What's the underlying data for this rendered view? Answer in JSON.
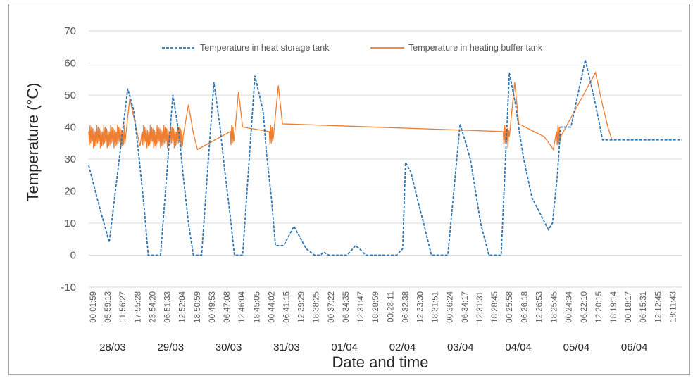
{
  "chart_data": {
    "type": "line",
    "xlabel": "Date and time",
    "ylabel": "Temperature (°C)",
    "ylim": [
      -10,
      70
    ],
    "yticks": [
      -10,
      0,
      10,
      20,
      30,
      40,
      50,
      60,
      70
    ],
    "grid": true,
    "legend_position": "top-center",
    "x_time_labels": [
      "00:01:59",
      "05:59:13",
      "11:56:27",
      "17:55:28",
      "23:54:20",
      "06:51:33",
      "12:52:04",
      "18:50:59",
      "00:49:53",
      "06:47:08",
      "12:46:04",
      "18:45:05",
      "00:44:02",
      "06:41:15",
      "12:39:29",
      "18:38:25",
      "00:37:22",
      "06:34:35",
      "12:31:47",
      "18:28:59",
      "00:28:11",
      "06:32:38",
      "12:33:30",
      "18:31:51",
      "00:36:24",
      "06:34:17",
      "12:31:31",
      "18:28:45",
      "00:25:58",
      "06:26:18",
      "12:26:53",
      "18:25:45",
      "00:24:34",
      "06:22:10",
      "12:20:15",
      "18:19:14",
      "00:18:17",
      "06:15:31",
      "12:12:45",
      "18:11:43"
    ],
    "date_labels": [
      "28/03",
      "29/03",
      "30/03",
      "31/03",
      "01/04",
      "02/04",
      "03/04",
      "04/04",
      "05/04",
      "06/04"
    ],
    "series": [
      {
        "name": "Temperature in heat storage tank",
        "color": "#2e75b6",
        "style": "dashed",
        "x_days": [
          0.0,
          0.2,
          0.5,
          0.95,
          1.1,
          1.23,
          1.35,
          1.45,
          1.75,
          2.05,
          2.2,
          2.3,
          2.43,
          2.55,
          2.75,
          3.05,
          3.2,
          3.3,
          3.45,
          3.55,
          3.75,
          4.05,
          4.25,
          4.33,
          4.45,
          4.55,
          4.75,
          5.0,
          5.3,
          5.5,
          5.65,
          5.72,
          5.85,
          6.3,
          6.5,
          6.6,
          6.75,
          6.85,
          7.5,
          7.65,
          7.72,
          7.85,
          8.0,
          8.2,
          8.35,
          8.45,
          8.55,
          8.75,
          9.05,
          9.3,
          9.4,
          9.55,
          9.75,
          10.05,
          10.25,
          10.4,
          10.5,
          10.6,
          10.8,
          11.2,
          11.3,
          11.42,
          11.5,
          11.75,
          12.1,
          12.3,
          12.43,
          12.52,
          12.75,
          13.1,
          13.3,
          13.38,
          13.48,
          13.6,
          13.85,
          14.05,
          14.2,
          14.33,
          14.45
        ],
        "y": [
          28,
          18,
          4,
          52,
          45,
          30,
          15,
          0,
          0,
          50,
          38,
          25,
          10,
          0,
          0,
          54,
          40,
          28,
          12,
          0,
          0,
          56,
          45,
          32,
          18,
          3,
          3,
          9,
          2,
          0,
          0,
          1,
          0,
          0,
          3,
          2,
          0,
          0,
          0,
          2,
          29,
          26,
          18,
          8,
          0,
          0,
          0,
          0,
          41,
          30,
          22,
          10,
          0,
          0,
          57,
          47,
          38,
          30,
          18,
          8,
          10,
          25,
          40,
          40,
          61,
          50,
          42,
          36,
          36,
          36,
          36,
          36,
          36,
          36,
          36,
          36,
          36,
          36,
          36
        ]
      },
      {
        "name": "Temperature in heating buffer tank",
        "color": "#ed7d31",
        "style": "solid",
        "x_days": [
          0.0,
          0.9,
          1.0,
          1.15,
          1.25,
          1.3,
          2.3,
          2.43,
          2.55,
          2.65,
          3.45,
          3.55,
          3.65,
          3.75,
          4.4,
          4.5,
          4.62,
          4.72,
          10.1,
          10.25,
          10.38,
          10.48,
          11.1,
          11.32,
          11.4,
          11.5,
          12.35,
          12.5,
          12.65,
          12.75
        ],
        "y": [
          37,
          37,
          49,
          40,
          34,
          37,
          37,
          47,
          38,
          33,
          37,
          37,
          51,
          40,
          37,
          37,
          53,
          41,
          37,
          37,
          54,
          41,
          37,
          33,
          37,
          37,
          57,
          48,
          40,
          36
        ]
      }
    ]
  },
  "colors": {
    "axis": "#d9d9d9",
    "grid": "#d9d9d9",
    "storage": "#2e75b6",
    "buffer": "#ed7d31"
  }
}
